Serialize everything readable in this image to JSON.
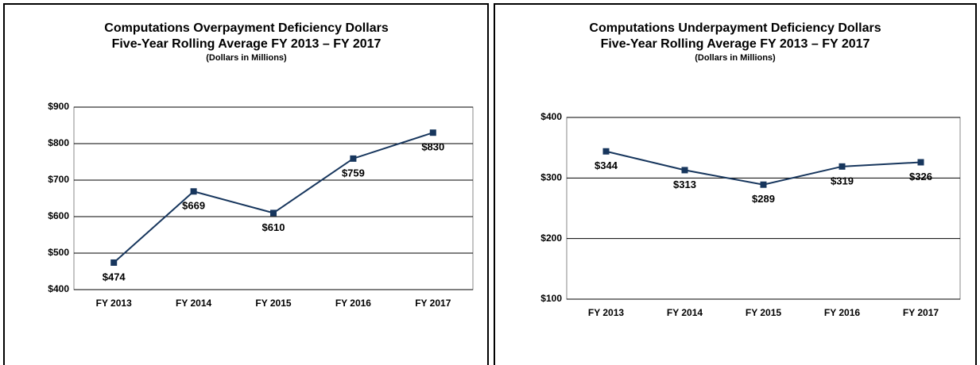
{
  "chart_data": [
    {
      "type": "line",
      "title": "Computations Overpayment Deficiency Dollars",
      "subtitle": "Five-Year Rolling Average FY 2013 – FY 2017",
      "units_note": "(Dollars in Millions)",
      "categories": [
        "FY 2013",
        "FY 2014",
        "FY 2015",
        "FY 2016",
        "FY 2017"
      ],
      "values": [
        474,
        669,
        610,
        759,
        830
      ],
      "value_labels": [
        "$474",
        "$669",
        "$610",
        "$759",
        "$830"
      ],
      "color": "#17365d",
      "ylim": [
        400,
        900
      ],
      "yticks": [
        {
          "value": 400,
          "label": "$400"
        },
        {
          "value": 500,
          "label": "$500"
        },
        {
          "value": 600,
          "label": "$600"
        },
        {
          "value": 700,
          "label": "$700"
        },
        {
          "value": 800,
          "label": "$800"
        },
        {
          "value": 900,
          "label": "$900"
        }
      ],
      "grid": true
    },
    {
      "type": "line",
      "title": "Computations Underpayment Deficiency Dollars",
      "subtitle": "Five-Year Rolling Average FY 2013 – FY 2017",
      "units_note": "(Dollars in Millions)",
      "categories": [
        "FY 2013",
        "FY 2014",
        "FY 2015",
        "FY 2016",
        "FY 2017"
      ],
      "values": [
        344,
        313,
        289,
        319,
        326
      ],
      "value_labels": [
        "$344",
        "$313",
        "$289",
        "$319",
        "$326"
      ],
      "color": "#17365d",
      "ylim": [
        100,
        400
      ],
      "yticks": [
        {
          "value": 100,
          "label": "$100"
        },
        {
          "value": 200,
          "label": "$200"
        },
        {
          "value": 300,
          "label": "$300"
        },
        {
          "value": 400,
          "label": "$400"
        }
      ],
      "grid": true
    }
  ]
}
